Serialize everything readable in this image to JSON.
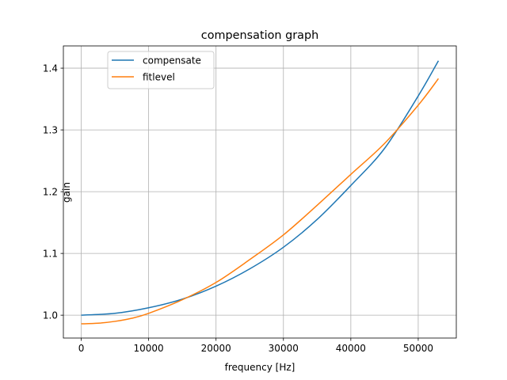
{
  "chart_data": {
    "type": "line",
    "title": "compensation graph",
    "xlabel": "frequency [Hz]",
    "ylabel": "gain",
    "xlim": [
      -2650,
      55650
    ],
    "ylim": [
      0.963,
      1.436
    ],
    "xticks": [
      0,
      10000,
      20000,
      30000,
      40000,
      50000
    ],
    "yticks": [
      1.0,
      1.1,
      1.2,
      1.3,
      1.4
    ],
    "grid": true,
    "legend_position": "upper left",
    "series": [
      {
        "name": "compensate",
        "color": "#1f77b4",
        "x": [
          0,
          5000,
          10000,
          15000,
          20000,
          25000,
          30000,
          35000,
          40000,
          45000,
          50000,
          53000
        ],
        "y": [
          1.0,
          1.003,
          1.012,
          1.026,
          1.047,
          1.075,
          1.11,
          1.155,
          1.21,
          1.27,
          1.355,
          1.412
        ]
      },
      {
        "name": "fitlevel",
        "color": "#ff7f0e",
        "x": [
          0,
          2500,
          5000,
          7500,
          10000,
          15000,
          20000,
          25000,
          30000,
          35000,
          40000,
          45000,
          50000,
          53000
        ],
        "y": [
          0.986,
          0.987,
          0.99,
          0.995,
          1.003,
          1.025,
          1.053,
          1.09,
          1.13,
          1.178,
          1.228,
          1.278,
          1.34,
          1.383
        ]
      }
    ]
  }
}
